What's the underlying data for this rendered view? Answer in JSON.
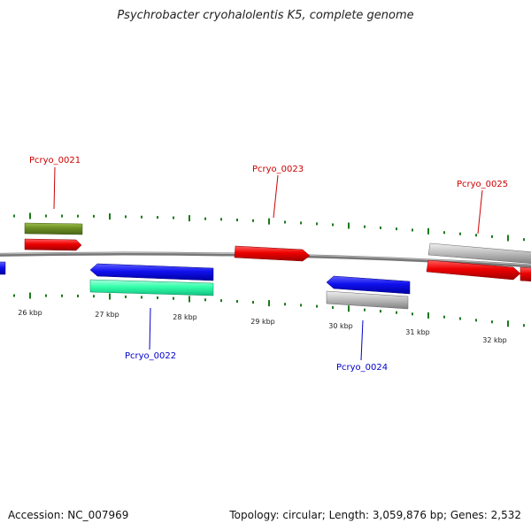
{
  "title": "Psychrobacter cryohalolentis K5, complete genome",
  "footer": {
    "accession": "Accession: NC_007969",
    "summary": "Topology: circular; Length: 3,059,876 bp; Genes: 2,532"
  },
  "colors": {
    "backbone": "#888888",
    "tick": "#1a7a1a",
    "label_forward": "#cc0000",
    "label_reverse": "#0000cc",
    "red": "#ee0000",
    "blue": "#1010ee",
    "olive": "#6b8e23",
    "teal": "#33ffaa",
    "gray": "#c0c0c0"
  },
  "scale_labels": [
    "26 kbp",
    "27 kbp",
    "28 kbp",
    "29 kbp",
    "30 kbp",
    "31 kbp",
    "32 kbp"
  ],
  "genes": [
    {
      "name": "Pcryo_0021",
      "strand": "forward"
    },
    {
      "name": "Pcryo_0022",
      "strand": "reverse"
    },
    {
      "name": "Pcryo_0023",
      "strand": "forward"
    },
    {
      "name": "Pcryo_0024",
      "strand": "reverse"
    },
    {
      "name": "Pcryo_0025",
      "strand": "forward"
    }
  ]
}
